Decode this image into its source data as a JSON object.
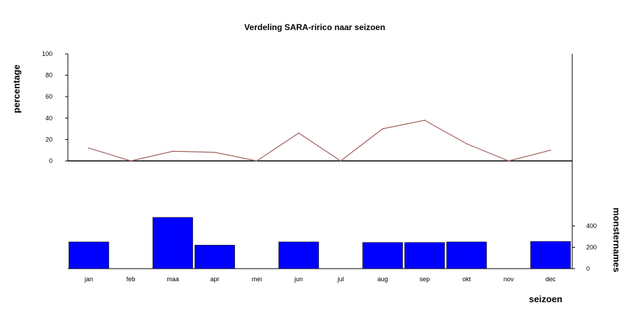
{
  "chart_data": {
    "type": "bar+line",
    "title": "Verdeling SARA-ririco naar seizoen",
    "xlabel": "seizoen",
    "categories": [
      "jan",
      "feb",
      "maa",
      "apr",
      "mei",
      "jun",
      "jul",
      "aug",
      "sep",
      "okt",
      "nov",
      "dec"
    ],
    "line": {
      "ylabel": "percentage",
      "ylim": [
        0,
        100
      ],
      "yticks": [
        "0",
        "20",
        "40",
        "60",
        "80",
        "100"
      ],
      "values": [
        12,
        0,
        9,
        8,
        0,
        26,
        0,
        30,
        38,
        16,
        0,
        10
      ],
      "color": "#a0625e"
    },
    "bars": {
      "ylabel": "monsternames",
      "ylim": [
        0,
        400
      ],
      "yticks": [
        "0",
        "200",
        "400"
      ],
      "values": [
        250,
        0,
        480,
        220,
        0,
        250,
        0,
        245,
        245,
        250,
        0,
        255
      ],
      "color": "#0000ff"
    },
    "grid": false,
    "legend": "none"
  }
}
